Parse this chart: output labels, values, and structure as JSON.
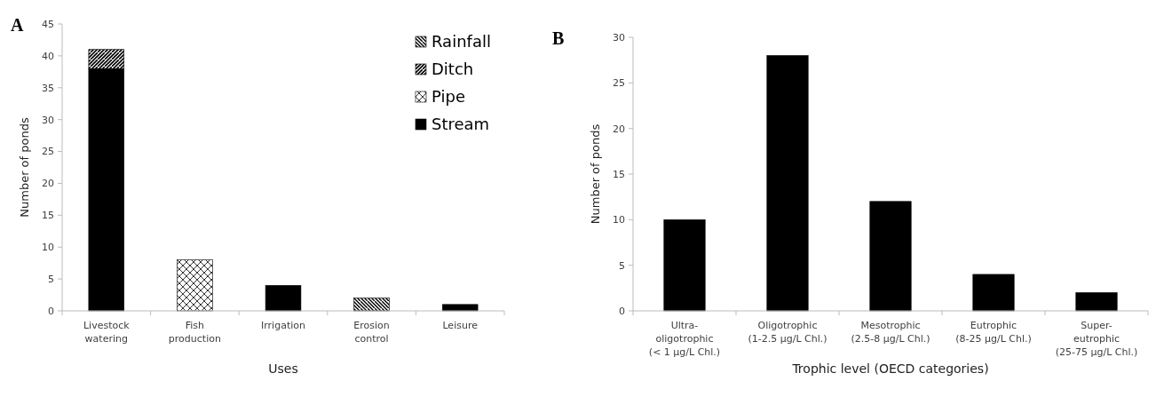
{
  "chart_data": [
    {
      "type": "bar",
      "title": "A",
      "xlabel": "Uses",
      "ylabel": "Number of ponds",
      "categories": [
        "Livestock\nwatering",
        "Fish\nproduction",
        "Irrigation",
        "Erosion\ncontrol",
        "Leisure"
      ],
      "stacked": true,
      "ylim": [
        0,
        45
      ],
      "yticks": [
        0,
        5,
        10,
        15,
        20,
        25,
        30,
        35,
        40,
        45
      ],
      "legend": "top right",
      "grid": false,
      "series": [
        {
          "name": "Stream",
          "color": "#000000",
          "values": [
            38,
            0,
            4,
            0,
            1
          ]
        },
        {
          "name": "Pipe",
          "color": "#000000",
          "values": [
            0,
            8,
            0,
            0,
            0
          ]
        },
        {
          "name": "Ditch",
          "color": "#000000",
          "values": [
            3,
            0,
            0,
            0,
            0
          ]
        },
        {
          "name": "Rainfall",
          "color": "#000000",
          "values": [
            0,
            0,
            0,
            2,
            0
          ]
        }
      ]
    },
    {
      "type": "bar",
      "title": "B",
      "xlabel": "Trophic level (OECD categories)",
      "ylabel": "Number of ponds",
      "categories": [
        "Ultra-\noligotrophic\n(< 1 µg/L Chl.)",
        "Oligotrophic\n(1-2.5 µg/L Chl.)",
        "Mesotrophic\n(2.5-8 µg/L Chl.)",
        "Eutrophic\n(8-25 µg/L Chl.)",
        "Super-\neutrophic\n(25-75 µg/L Chl.)"
      ],
      "ylim": [
        0,
        30
      ],
      "yticks": [
        0,
        5,
        10,
        15,
        20,
        25,
        30
      ],
      "grid": false,
      "legend": false,
      "series": [
        {
          "color": "#000000",
          "values": [
            10,
            28,
            12,
            4,
            2
          ]
        }
      ]
    }
  ]
}
